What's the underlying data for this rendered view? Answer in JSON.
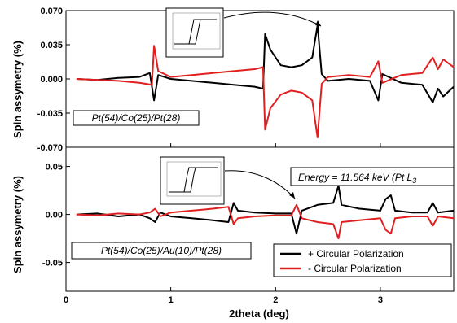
{
  "chart_data": [
    {
      "type": "line",
      "ylabel": "Spin assymetry (%)",
      "xlim": [
        0,
        3.7
      ],
      "ylim": [
        -0.07,
        0.07
      ],
      "yticks": [
        "0.070",
        "0.035",
        "0.000",
        "-0.035",
        "-0.070"
      ],
      "annotation": "Pt(54)/Co(25)/Pt(28)",
      "series": [
        {
          "color": "#000000",
          "points": [
            [
              0.1,
              0
            ],
            [
              0.3,
              -0.001
            ],
            [
              0.5,
              0.001
            ],
            [
              0.7,
              0.002
            ],
            [
              0.8,
              0.006
            ],
            [
              0.84,
              -0.022
            ],
            [
              0.88,
              0.004
            ],
            [
              1.0,
              0
            ],
            [
              1.2,
              -0.002
            ],
            [
              1.4,
              -0.004
            ],
            [
              1.6,
              -0.006
            ],
            [
              1.8,
              -0.008
            ],
            [
              1.88,
              -0.01
            ],
            [
              1.9,
              0.046
            ],
            [
              1.95,
              0.03
            ],
            [
              2.05,
              0.014
            ],
            [
              2.15,
              0.012
            ],
            [
              2.25,
              0.014
            ],
            [
              2.35,
              0.022
            ],
            [
              2.4,
              0.055
            ],
            [
              2.44,
              0.005
            ],
            [
              2.5,
              -0.002
            ],
            [
              2.7,
              0
            ],
            [
              2.9,
              -0.002
            ],
            [
              2.98,
              -0.022
            ],
            [
              3.02,
              0.005
            ],
            [
              3.2,
              -0.004
            ],
            [
              3.4,
              -0.006
            ],
            [
              3.5,
              -0.024
            ],
            [
              3.55,
              -0.01
            ],
            [
              3.6,
              -0.018
            ],
            [
              3.7,
              -0.008
            ]
          ]
        },
        {
          "color": "#e02020",
          "points": [
            [
              0.1,
              0
            ],
            [
              0.3,
              -0.001
            ],
            [
              0.5,
              -0.002
            ],
            [
              0.7,
              -0.004
            ],
            [
              0.82,
              -0.006
            ],
            [
              0.84,
              0.034
            ],
            [
              0.88,
              0.008
            ],
            [
              1.0,
              0.002
            ],
            [
              1.2,
              0.004
            ],
            [
              1.4,
              0.006
            ],
            [
              1.6,
              0.008
            ],
            [
              1.8,
              0.01
            ],
            [
              1.88,
              0.012
            ],
            [
              1.9,
              -0.052
            ],
            [
              1.95,
              -0.03
            ],
            [
              2.05,
              -0.016
            ],
            [
              2.15,
              -0.012
            ],
            [
              2.25,
              -0.014
            ],
            [
              2.35,
              -0.022
            ],
            [
              2.4,
              -0.06
            ],
            [
              2.44,
              -0.005
            ],
            [
              2.5,
              0.002
            ],
            [
              2.7,
              0.004
            ],
            [
              2.9,
              0.002
            ],
            [
              2.98,
              0.018
            ],
            [
              3.02,
              -0.004
            ],
            [
              3.2,
              0.004
            ],
            [
              3.4,
              0.006
            ],
            [
              3.5,
              0.022
            ],
            [
              3.55,
              0.01
            ],
            [
              3.6,
              0.02
            ],
            [
              3.7,
              0.012
            ]
          ]
        }
      ]
    },
    {
      "type": "line",
      "ylabel": "Spin assymetry (%)",
      "xlabel": "2theta (deg)",
      "xlim": [
        0,
        3.7
      ],
      "ylim": [
        -0.08,
        0.07
      ],
      "xticks": [
        "0",
        "1",
        "2",
        "3"
      ],
      "yticks": [
        "0.05",
        "0.00",
        "-0.05"
      ],
      "annotation": "Pt(54)/Co(25)/Au(10)/Pt(28)",
      "energy_label": "Energy = 11.564 keV (Pt L",
      "energy_subscript": "3",
      "legend": [
        "+ Circular Polarization",
        "- Circular Polarization"
      ],
      "series": [
        {
          "name": "+ Circular Polarization",
          "color": "#000000",
          "points": [
            [
              0.1,
              0
            ],
            [
              0.3,
              0.001
            ],
            [
              0.5,
              -0.002
            ],
            [
              0.7,
              0
            ],
            [
              0.8,
              -0.004
            ],
            [
              0.85,
              -0.008
            ],
            [
              0.9,
              0.002
            ],
            [
              1.0,
              -0.002
            ],
            [
              1.2,
              -0.004
            ],
            [
              1.4,
              -0.006
            ],
            [
              1.55,
              -0.008
            ],
            [
              1.6,
              0.012
            ],
            [
              1.64,
              0.004
            ],
            [
              1.8,
              0.002
            ],
            [
              2.0,
              0.001
            ],
            [
              2.15,
              0.001
            ],
            [
              2.2,
              -0.02
            ],
            [
              2.25,
              0.004
            ],
            [
              2.4,
              0.01
            ],
            [
              2.55,
              0.012
            ],
            [
              2.6,
              0.03
            ],
            [
              2.63,
              0.01
            ],
            [
              2.8,
              0.006
            ],
            [
              3.0,
              0.004
            ],
            [
              3.05,
              0.016
            ],
            [
              3.1,
              0.02
            ],
            [
              3.14,
              0.004
            ],
            [
              3.3,
              0.002
            ],
            [
              3.45,
              0.002
            ],
            [
              3.5,
              0.012
            ],
            [
              3.55,
              0.002
            ],
            [
              3.7,
              0.004
            ]
          ]
        },
        {
          "name": "- Circular Polarization",
          "color": "#e02020",
          "points": [
            [
              0.1,
              0
            ],
            [
              0.3,
              -0.001
            ],
            [
              0.5,
              0.001
            ],
            [
              0.7,
              0
            ],
            [
              0.8,
              0.002
            ],
            [
              0.85,
              0.006
            ],
            [
              0.9,
              -0.002
            ],
            [
              1.0,
              0.002
            ],
            [
              1.2,
              0.004
            ],
            [
              1.4,
              0.006
            ],
            [
              1.55,
              0.008
            ],
            [
              1.6,
              -0.01
            ],
            [
              1.64,
              -0.004
            ],
            [
              1.8,
              -0.002
            ],
            [
              2.0,
              -0.001
            ],
            [
              2.15,
              -0.001
            ],
            [
              2.2,
              0.01
            ],
            [
              2.25,
              -0.004
            ],
            [
              2.4,
              -0.008
            ],
            [
              2.55,
              -0.01
            ],
            [
              2.6,
              -0.025
            ],
            [
              2.63,
              -0.008
            ],
            [
              2.8,
              -0.006
            ],
            [
              3.0,
              -0.004
            ],
            [
              3.05,
              -0.016
            ],
            [
              3.1,
              -0.02
            ],
            [
              3.14,
              -0.004
            ],
            [
              3.3,
              -0.002
            ],
            [
              3.45,
              -0.002
            ],
            [
              3.5,
              -0.012
            ],
            [
              3.55,
              -0.002
            ],
            [
              3.7,
              -0.004
            ]
          ]
        }
      ]
    }
  ]
}
